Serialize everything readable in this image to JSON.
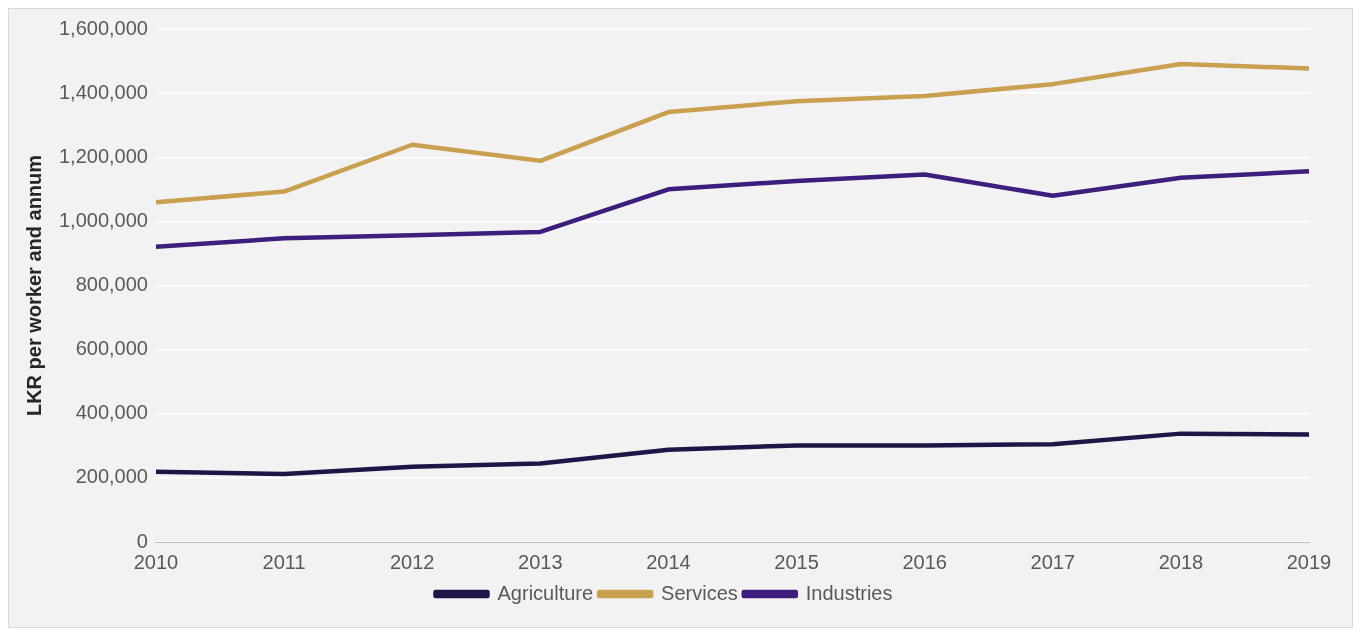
{
  "chart_data": {
    "type": "line",
    "ylabel": "LKR per worker and annum",
    "categories": [
      "2010",
      "2011",
      "2012",
      "2013",
      "2014",
      "2015",
      "2016",
      "2017",
      "2018",
      "2019"
    ],
    "series": [
      {
        "name": "Agriculture",
        "color": "#1f1546",
        "values": [
          219000,
          212000,
          235000,
          245000,
          288000,
          301000,
          301000,
          305000,
          338000,
          335000
        ]
      },
      {
        "name": "Services",
        "color": "#c9a050",
        "values": [
          1060000,
          1093000,
          1239000,
          1189000,
          1341000,
          1375000,
          1391000,
          1428000,
          1491000,
          1477000
        ]
      },
      {
        "name": "Industries",
        "color": "#3d1e7d",
        "values": [
          921000,
          947000,
          957000,
          967000,
          1100000,
          1126000,
          1146000,
          1080000,
          1136000,
          1156000
        ]
      }
    ],
    "ylim": [
      0,
      1600000
    ],
    "yticks": [
      0,
      {
        "value": 200000,
        "label": "200,000"
      },
      {
        "value": 400000,
        "label": "400,000"
      },
      {
        "value": 600000,
        "label": "600,000"
      },
      {
        "value": 800000,
        "label": "800,000"
      },
      {
        "value": 1000000,
        "label": "1,000,000"
      },
      {
        "value": 1200000,
        "label": "1,200,000"
      },
      {
        "value": 1400000,
        "label": "1,400,000"
      },
      {
        "value": 1600000,
        "label": "1,600,000"
      }
    ],
    "grid": "y",
    "legend": "bottom",
    "marker": "none",
    "line_style": "solid"
  }
}
